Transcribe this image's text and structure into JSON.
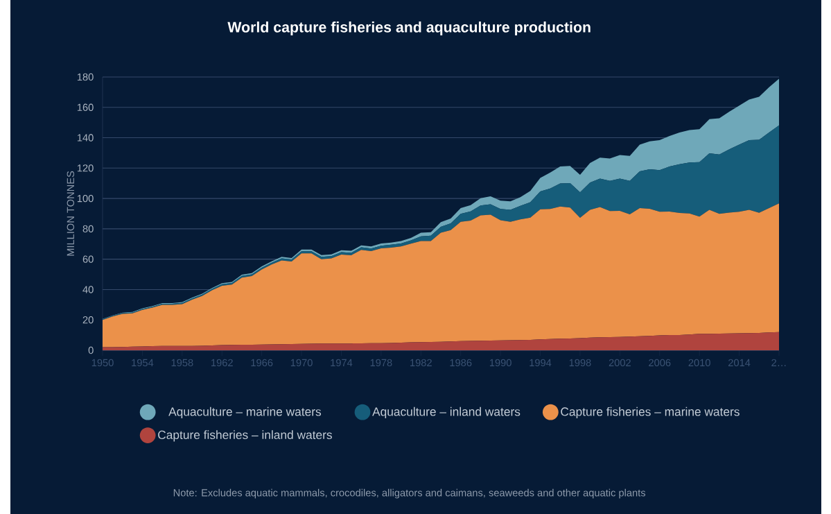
{
  "chart_data": {
    "type": "area",
    "stacked": true,
    "title": "World capture fisheries and aquaculture production",
    "ylabel": "MILLION TONNES",
    "annotations": [
      "Note: Excludes aquatic mammals, crocodiles, alligators and caimans, seaweeds and other aquatic plants"
    ],
    "categories": [
      "1950",
      null,
      null,
      null,
      "1954",
      null,
      null,
      null,
      "1958",
      null,
      null,
      null,
      "1962",
      null,
      null,
      null,
      "1966",
      null,
      null,
      null,
      "1970",
      null,
      null,
      null,
      "1974",
      null,
      null,
      null,
      "1978",
      null,
      null,
      null,
      "1982",
      null,
      null,
      null,
      "1986",
      null,
      null,
      null,
      "1990",
      null,
      null,
      null,
      "1994",
      null,
      null,
      null,
      "1998",
      null,
      null,
      null,
      "2002",
      null,
      null,
      null,
      "2006",
      null,
      null,
      null,
      "2010",
      null,
      null,
      null,
      "2014",
      null,
      null,
      null,
      "2…"
    ],
    "series": [
      {
        "name": "Capture fisheries – inland waters",
        "color": "#b0443e",
        "values": [
          2.0,
          2.1,
          2.2,
          2.4,
          2.5,
          2.7,
          2.8,
          2.9,
          2.9,
          2.9,
          3.0,
          3.2,
          3.4,
          3.5,
          3.6,
          3.7,
          3.8,
          3.9,
          4.0,
          4.1,
          4.2,
          4.3,
          4.4,
          4.4,
          4.5,
          4.5,
          4.6,
          4.7,
          4.7,
          4.8,
          5.0,
          5.2,
          5.4,
          5.5,
          5.6,
          5.8,
          6.0,
          6.2,
          6.3,
          6.4,
          6.5,
          6.6,
          6.7,
          6.9,
          7.2,
          7.4,
          7.6,
          7.8,
          8.0,
          8.3,
          8.6,
          8.7,
          8.8,
          9.0,
          9.2,
          9.5,
          9.8,
          10.0,
          10.1,
          10.4,
          10.9,
          10.9,
          11.0,
          11.1,
          11.2,
          11.3,
          11.4,
          11.8,
          12.0
        ]
      },
      {
        "name": "Capture fisheries – marine waters",
        "color": "#eb914a",
        "values": [
          18.0,
          20.2,
          21.8,
          21.9,
          24.1,
          25.4,
          27.1,
          27.0,
          27.5,
          30.5,
          32.7,
          36.3,
          39.1,
          39.8,
          44.3,
          45.2,
          49.4,
          52.6,
          55.2,
          54.4,
          59.6,
          59.5,
          55.6,
          56.1,
          58.5,
          58.1,
          61.5,
          60.6,
          62.4,
          62.8,
          63.4,
          65.0,
          66.6,
          66.5,
          71.8,
          73.3,
          78.6,
          79.2,
          82.5,
          82.9,
          79.2,
          78.0,
          79.5,
          80.5,
          85.6,
          85.7,
          87.1,
          86.2,
          79.3,
          84.2,
          85.7,
          83.0,
          83.0,
          80.5,
          84.5,
          83.7,
          81.4,
          81.4,
          80.3,
          79.7,
          77.2,
          81.6,
          78.9,
          79.6,
          80.0,
          81.2,
          79.2,
          81.8,
          84.7
        ]
      },
      {
        "name": "Aquaculture – inland waters",
        "color": "#165d7a",
        "values": [
          0.4,
          0.4,
          0.5,
          0.5,
          0.6,
          0.6,
          0.7,
          0.7,
          0.8,
          0.8,
          0.9,
          0.9,
          1.0,
          1.0,
          1.1,
          1.1,
          1.2,
          1.2,
          1.3,
          1.3,
          1.4,
          1.4,
          1.5,
          1.5,
          1.6,
          1.6,
          1.7,
          1.7,
          1.8,
          1.9,
          2.0,
          2.2,
          3.0,
          3.5,
          3.9,
          4.5,
          5.3,
          6.1,
          6.6,
          6.9,
          7.4,
          7.9,
          8.9,
          10.1,
          11.8,
          13.5,
          15.2,
          16.1,
          16.8,
          17.9,
          18.8,
          19.9,
          21.3,
          22.1,
          24.2,
          26.0,
          27.5,
          29.7,
          32.2,
          33.6,
          35.8,
          37.2,
          39.0,
          41.7,
          44.3,
          45.9,
          48.1,
          49.8,
          51.4
        ]
      },
      {
        "name": "Aquaculture – marine waters",
        "color": "#6fa8b9",
        "values": [
          0.3,
          0.3,
          0.3,
          0.4,
          0.4,
          0.4,
          0.5,
          0.5,
          0.5,
          0.5,
          0.6,
          0.6,
          0.7,
          0.7,
          0.8,
          0.8,
          0.9,
          0.9,
          1.0,
          1.0,
          1.1,
          1.1,
          1.2,
          1.2,
          1.3,
          1.3,
          1.3,
          1.4,
          1.4,
          1.4,
          1.5,
          1.6,
          2.4,
          2.3,
          3.1,
          3.2,
          3.7,
          4.1,
          4.8,
          5.2,
          5.5,
          5.6,
          5.8,
          7.4,
          8.9,
          10.5,
          11.2,
          11.3,
          11.5,
          13.0,
          13.8,
          14.7,
          15.5,
          16.4,
          17.6,
          18.4,
          19.7,
          20.1,
          20.8,
          21.3,
          21.7,
          22.5,
          23.9,
          24.8,
          25.7,
          26.7,
          28.3,
          29.9,
          30.8
        ]
      }
    ],
    "ylim": [
      0,
      180
    ],
    "yticks": [
      0,
      20,
      40,
      60,
      80,
      100,
      120,
      140,
      160,
      180
    ],
    "grid": "y",
    "legend": "bottom"
  }
}
